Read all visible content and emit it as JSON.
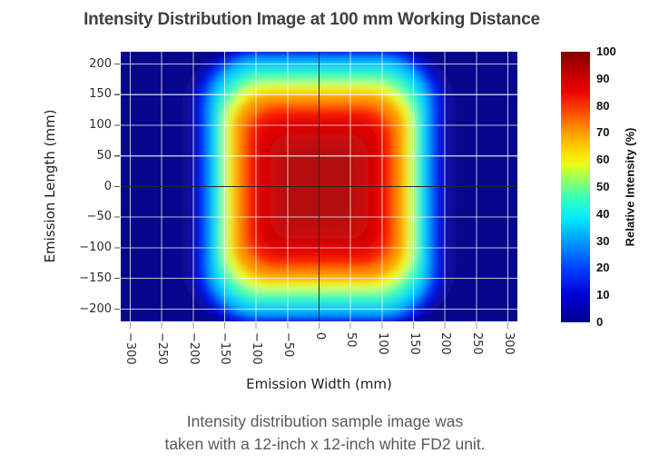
{
  "title": "Intensity Distribution Image at 100 mm Working Distance",
  "caption": {
    "line1": "Intensity distribution sample image was",
    "line2": "taken with a 12-inch x 12-inch white FD2 unit."
  },
  "axes": {
    "x": {
      "label": "Emission Width (mm)",
      "ticks": [
        "−300",
        "−250",
        "−200",
        "−150",
        "−100",
        "−50",
        "0",
        "50",
        "100",
        "150",
        "200",
        "250",
        "300"
      ]
    },
    "y": {
      "label": "Emission Length (mm)",
      "ticks": [
        "200",
        "150",
        "100",
        "50",
        "0",
        "−50",
        "−100",
        "−150",
        "−200"
      ]
    }
  },
  "colorbar": {
    "label": "Relative Intensity (%)",
    "ticks": [
      "100",
      "90",
      "80",
      "70",
      "60",
      "50",
      "40",
      "30",
      "20",
      "10",
      "0"
    ],
    "gradient": [
      "#00008b 0%",
      "#0000d8 10%",
      "#0040ff 20%",
      "#009cff 30%",
      "#00e8ff 38%",
      "#2cffc8 45%",
      "#8aff6e 52%",
      "#e4ff1c 58%",
      "#ffe400 62%",
      "#ffa000 70%",
      "#ff4700 78%",
      "#ee0400 85%",
      "#c00000 92%",
      "#870000 100%"
    ]
  },
  "colors": {
    "title_text": "#404040",
    "caption_text": "#595959",
    "heatmap_background": "#07078d",
    "grid_line": "rgba(255,255,255,0.72)",
    "crosshair_line": "#0a0a0a"
  },
  "chart_data": {
    "type": "heatmap",
    "title": "Intensity Distribution Image at 100 mm Working Distance",
    "xlabel": "Emission Width (mm)",
    "ylabel": "Emission Length (mm)",
    "xlim": [
      -315,
      315
    ],
    "ylim": [
      -220,
      220
    ],
    "x_ticks_mm": [
      -300,
      -250,
      -200,
      -150,
      -100,
      -50,
      0,
      50,
      100,
      150,
      200,
      250,
      300
    ],
    "y_ticks_mm": [
      200,
      150,
      100,
      50,
      0,
      -50,
      -100,
      -150,
      -200
    ],
    "grid": true,
    "crosshair_at": [
      0,
      0
    ],
    "colormap": "jet",
    "colorbar_label": "Relative Intensity (%)",
    "colorbar_range": [
      0,
      100
    ],
    "x": [
      -300,
      -250,
      -200,
      -150,
      -100,
      -50,
      0,
      50,
      100,
      150,
      200,
      250,
      300
    ],
    "y": [
      200,
      150,
      100,
      50,
      0,
      -50,
      -100,
      -150,
      -200
    ],
    "values": [
      [
        1,
        1,
        2,
        8,
        20,
        32,
        38,
        32,
        20,
        8,
        2,
        1,
        1
      ],
      [
        1,
        2,
        5,
        20,
        45,
        63,
        70,
        63,
        45,
        20,
        5,
        2,
        1
      ],
      [
        1,
        2,
        7,
        30,
        62,
        80,
        88,
        80,
        62,
        30,
        7,
        2,
        1
      ],
      [
        1,
        2,
        8,
        35,
        70,
        90,
        97,
        90,
        70,
        35,
        8,
        2,
        1
      ],
      [
        1,
        2,
        8,
        36,
        72,
        92,
        100,
        92,
        72,
        36,
        8,
        2,
        1
      ],
      [
        1,
        2,
        8,
        35,
        70,
        90,
        97,
        90,
        70,
        35,
        8,
        2,
        1
      ],
      [
        1,
        2,
        7,
        30,
        62,
        80,
        88,
        80,
        62,
        30,
        7,
        2,
        1
      ],
      [
        1,
        2,
        5,
        20,
        45,
        63,
        70,
        63,
        45,
        20,
        5,
        2,
        1
      ],
      [
        1,
        1,
        2,
        8,
        20,
        32,
        38,
        32,
        20,
        8,
        2,
        1,
        1
      ]
    ],
    "iso_contours": [
      {
        "level": 5,
        "color": "#12129a",
        "half_width_mm": 213,
        "half_height_mm": 225
      },
      {
        "level": 10,
        "color": "#0000cd",
        "half_width_mm": 200,
        "half_height_mm": 228
      },
      {
        "level": 20,
        "color": "#0033ff",
        "half_width_mm": 190,
        "half_height_mm": 218
      },
      {
        "level": 35,
        "color": "#00ccff",
        "half_width_mm": 175,
        "half_height_mm": 208
      },
      {
        "level": 50,
        "color": "#3affb0",
        "half_width_mm": 162,
        "half_height_mm": 190
      },
      {
        "level": 60,
        "color": "#eaff1e",
        "half_width_mm": 150,
        "half_height_mm": 170
      },
      {
        "level": 70,
        "color": "#ff9500",
        "half_width_mm": 137,
        "half_height_mm": 154
      },
      {
        "level": 80,
        "color": "#ff2a00",
        "half_width_mm": 120,
        "half_height_mm": 134
      },
      {
        "level": 85,
        "color": "#f01000",
        "half_width_mm": 108,
        "half_height_mm": 120
      },
      {
        "level": 90,
        "color": "#d90606",
        "half_width_mm": 97,
        "half_height_mm": 107
      },
      {
        "level": 95,
        "color": "#c60b0b",
        "half_width_mm": 78,
        "half_height_mm": 86
      },
      {
        "level": 100,
        "color": "#b31010",
        "half_width_mm": 57,
        "half_height_mm": 62
      }
    ]
  }
}
